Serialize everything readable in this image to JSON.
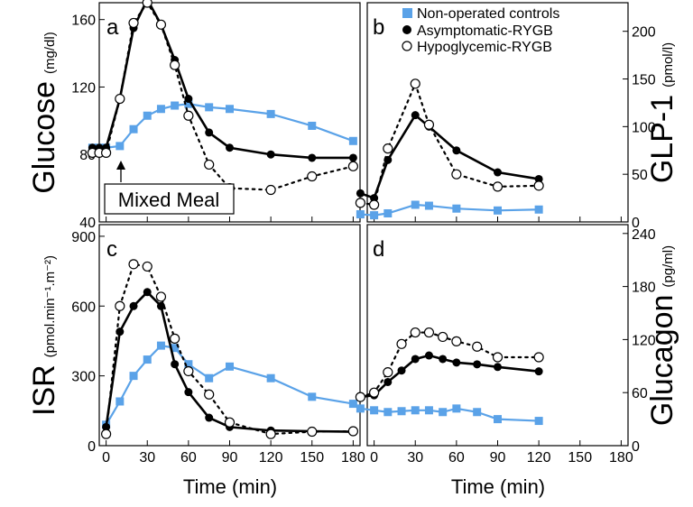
{
  "legend": {
    "position": "top-right",
    "entries": [
      {
        "label": "Non-operated controls",
        "marker": "square",
        "color": "#5aa2e8"
      },
      {
        "label": "Asymptomatic-RYGB",
        "marker": "filled-circle",
        "color": "#000000"
      },
      {
        "label": "Hypoglycemic-RYGB",
        "marker": "open-circle",
        "color": "#000000"
      }
    ]
  },
  "annotation": {
    "text": "Mixed Meal"
  },
  "colors": {
    "controls": "#5aa2e8",
    "rygb": "#000000"
  },
  "chart_data": [
    {
      "type": "line",
      "panel": "a",
      "ylabel_main": "Glucose",
      "ylabel_unit": "(mg/dl)",
      "xlim": [
        -5,
        185
      ],
      "ylim": [
        40,
        170
      ],
      "yticks": [
        40,
        80,
        120,
        160
      ],
      "xticks": [
        0,
        30,
        60,
        90,
        120,
        150,
        180
      ],
      "series": [
        {
          "name": "Non-operated controls",
          "x": [
            -10,
            -5,
            0,
            10,
            20,
            30,
            40,
            50,
            60,
            75,
            90,
            120,
            150,
            180
          ],
          "y": [
            84,
            84,
            84,
            85,
            95,
            103,
            107,
            109,
            110,
            108,
            107,
            104,
            97,
            88
          ]
        },
        {
          "name": "Asymptomatic-RYGB",
          "x": [
            -10,
            -5,
            0,
            10,
            20,
            30,
            40,
            50,
            60,
            75,
            90,
            120,
            150,
            180
          ],
          "y": [
            84,
            84,
            84,
            113,
            155,
            172,
            157,
            136,
            113,
            93,
            84,
            80,
            78,
            78
          ]
        },
        {
          "name": "Hypoglycemic-RYGB",
          "x": [
            -10,
            -5,
            0,
            10,
            20,
            30,
            40,
            50,
            60,
            75,
            90,
            120,
            150,
            180
          ],
          "y": [
            81,
            81,
            81,
            113,
            158,
            170,
            157,
            133,
            103,
            74,
            60,
            59,
            67,
            73
          ]
        }
      ]
    },
    {
      "type": "line",
      "panel": "b",
      "ylabel_main": "GLP-1",
      "ylabel_unit": "(pmol/l)",
      "xlim": [
        -5,
        185
      ],
      "ylim": [
        0,
        230
      ],
      "yticks": [
        0,
        50,
        100,
        150,
        200
      ],
      "xticks": [
        0,
        30,
        60,
        90,
        120,
        150,
        180
      ],
      "series": [
        {
          "name": "Non-operated controls",
          "x": [
            -10,
            0,
            10,
            30,
            40,
            60,
            90,
            120
          ],
          "y": [
            8,
            7,
            9,
            18,
            17,
            14,
            12,
            13
          ]
        },
        {
          "name": "Asymptomatic-RYGB",
          "x": [
            -10,
            0,
            10,
            30,
            40,
            60,
            90,
            120
          ],
          "y": [
            30,
            25,
            65,
            112,
            100,
            75,
            52,
            45
          ]
        },
        {
          "name": "Hypoglycemic-RYGB",
          "x": [
            -10,
            0,
            10,
            30,
            40,
            60,
            90,
            120
          ],
          "y": [
            20,
            18,
            77,
            145,
            102,
            50,
            37,
            38
          ]
        }
      ]
    },
    {
      "type": "line",
      "panel": "c",
      "ylabel_main": "ISR",
      "ylabel_unit": "(pmol.min⁻¹.m⁻²)",
      "xlabel": "Time (min)",
      "xlim": [
        -5,
        185
      ],
      "ylim": [
        0,
        950
      ],
      "yticks": [
        0,
        300,
        600,
        900
      ],
      "xticks": [
        0,
        30,
        60,
        90,
        120,
        150,
        180
      ],
      "series": [
        {
          "name": "Non-operated controls",
          "x": [
            0,
            10,
            20,
            30,
            40,
            50,
            60,
            75,
            90,
            120,
            150,
            180
          ],
          "y": [
            90,
            190,
            300,
            370,
            430,
            420,
            350,
            290,
            340,
            290,
            210,
            180
          ]
        },
        {
          "name": "Asymptomatic-RYGB",
          "x": [
            0,
            10,
            20,
            30,
            40,
            50,
            60,
            75,
            90,
            120,
            150,
            180
          ],
          "y": [
            80,
            490,
            600,
            660,
            600,
            350,
            230,
            120,
            80,
            65,
            62,
            60
          ]
        },
        {
          "name": "Hypoglycemic-RYGB",
          "x": [
            0,
            10,
            20,
            30,
            40,
            50,
            60,
            75,
            90,
            120,
            150,
            180
          ],
          "y": [
            50,
            600,
            780,
            770,
            640,
            460,
            320,
            220,
            100,
            50,
            60,
            62
          ]
        }
      ]
    },
    {
      "type": "line",
      "panel": "d",
      "ylabel_main": "Glucagon",
      "ylabel_unit": "(pg/ml)",
      "xlabel": "Time (min)",
      "xlim": [
        -5,
        185
      ],
      "ylim": [
        0,
        250
      ],
      "yticks": [
        0,
        60,
        120,
        180,
        240
      ],
      "xticks": [
        0,
        30,
        60,
        90,
        120,
        150,
        180
      ],
      "series": [
        {
          "name": "Non-operated controls",
          "x": [
            -10,
            0,
            10,
            20,
            30,
            40,
            50,
            60,
            75,
            90,
            120
          ],
          "y": [
            42,
            40,
            38,
            39,
            40,
            40,
            38,
            42,
            38,
            30,
            28
          ]
        },
        {
          "name": "Asymptomatic-RYGB",
          "x": [
            -10,
            0,
            10,
            20,
            30,
            40,
            50,
            60,
            75,
            90,
            120
          ],
          "y": [
            55,
            57,
            72,
            85,
            98,
            102,
            98,
            94,
            92,
            89,
            84
          ]
        },
        {
          "name": "Hypoglycemic-RYGB",
          "x": [
            -10,
            0,
            10,
            20,
            30,
            40,
            50,
            60,
            75,
            90,
            120
          ],
          "y": [
            55,
            60,
            83,
            115,
            128,
            128,
            123,
            118,
            112,
            100,
            100
          ]
        }
      ]
    }
  ]
}
